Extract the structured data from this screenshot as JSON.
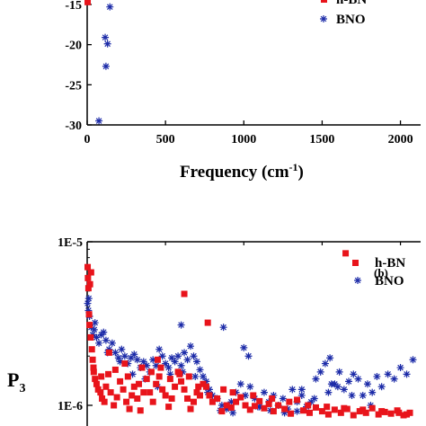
{
  "chart_data": [
    {
      "type": "scatter",
      "panel": "top",
      "xlabel": "Frequency (cm",
      "xlabel_sup": "-1",
      "xlabel_close": ")",
      "xlim": [
        0,
        2100
      ],
      "ylim": [
        -30,
        -13
      ],
      "xticks": [
        0,
        500,
        1000,
        1500,
        2000
      ],
      "xtick_labels": [
        "0",
        "500",
        "1000",
        "1500",
        "2000"
      ],
      "yticks": [
        -15,
        -20,
        -25,
        -30
      ],
      "ytick_labels": [
        "-15",
        "-20",
        "-25",
        "-30"
      ],
      "legend_position": "top-right",
      "series": [
        {
          "name": "h-BN",
          "marker": "square",
          "color": "#e8141b",
          "x": [
            3
          ],
          "y": [
            -14.7
          ]
        },
        {
          "name": "BNO",
          "marker": "asterisk",
          "color": "#1c2ba8",
          "x": [
            145,
            115,
            130,
            120,
            75
          ],
          "y": [
            -15.3,
            -19.1,
            -19.9,
            -22.7,
            -29.5
          ]
        }
      ]
    },
    {
      "type": "scatter",
      "panel": "bottom",
      "panel_label": "(b)",
      "ylabel": "P",
      "ylabel_sub": "3",
      "xlim": [
        0,
        2100
      ],
      "yscale": "log",
      "ylim": [
        8e-07,
        1e-05
      ],
      "yticks": [
        1e-05,
        1e-06
      ],
      "ytick_labels": [
        "1E-5",
        "1E-6"
      ],
      "legend_position": "top-right",
      "series": [
        {
          "name": "h-BN",
          "marker": "square",
          "color": "#e8141b",
          "x": [
            3,
            5,
            8,
            12,
            15,
            22,
            30,
            35,
            42,
            50,
            60,
            70,
            85,
            95,
            110,
            120,
            135,
            150,
            170,
            190,
            210,
            230,
            250,
            270,
            285,
            300,
            320,
            340,
            360,
            380,
            400,
            420,
            440,
            460,
            480,
            500,
            520,
            540,
            560,
            580,
            600,
            620,
            640,
            660,
            680,
            700,
            720,
            740,
            760,
            780,
            800,
            830,
            860,
            890,
            920,
            950,
            980,
            1010,
            1040,
            1070,
            1100,
            1130,
            1160,
            1190,
            1220,
            1260,
            1300,
            1340,
            1380,
            1420,
            1460,
            1500,
            1540,
            1580,
            1620,
            1660,
            1700,
            1740,
            1780,
            1820,
            1860,
            1900,
            1940,
            1980,
            2020,
            2060,
            620,
            770,
            1650,
            25,
            18,
            40,
            90,
            180,
            260,
            330,
            410,
            470,
            530,
            590,
            650,
            710,
            870,
            930,
            1060,
            1180,
            1290,
            1410,
            1530,
            1640,
            1760,
            1880,
            1990,
            2040,
            140,
            240,
            350,
            450
          ],
          "y": [
            7e-06,
            6e-06,
            5.2e-06,
            3.6e-06,
            3.1e-06,
            2.6e-06,
            2.2e-06,
            1.9e-06,
            1.6e-06,
            1.45e-06,
            1.35e-06,
            1.25e-06,
            1.2e-06,
            1.1e-06,
            1.05e-06,
            1.3e-06,
            1.55e-06,
            1.2e-06,
            1e-06,
            1.12e-06,
            1.4e-06,
            1.25e-06,
            1.05e-06,
            9.5e-07,
            1.15e-06,
            1.3e-06,
            1.1e-06,
            9.3e-07,
            1.2e-06,
            1.45e-06,
            1.2e-06,
            1.05e-06,
            1.35e-06,
            1.5e-06,
            1.25e-06,
            1.15e-06,
            9.8e-07,
            1.1e-06,
            1.3e-06,
            1.6e-06,
            1.4e-06,
            1.25e-06,
            1.1e-06,
            9.5e-07,
            1.05e-06,
            1.2e-06,
            1.15e-06,
            1.35e-06,
            1.3e-06,
            1.15e-06,
            1.05e-06,
            1.1e-06,
            9.2e-07,
            1e-06,
            9.7e-07,
            1.05e-06,
            1.12e-06,
            1e-06,
            9.4e-07,
            9.9e-07,
            1.06e-06,
            9.6e-07,
            1.02e-06,
            9.2e-07,
            1e-06,
            9.5e-07,
            8.9e-07,
            1.08e-06,
            9.3e-07,
            9e-07,
            9.7e-07,
            9.2e-07,
            8.8e-07,
            9.4e-07,
            9e-07,
            9.5e-07,
            8.7e-07,
            9.2e-07,
            9e-07,
            9.6e-07,
            8.8e-07,
            9.1e-07,
            8.9e-07,
            9.3e-07,
            8.7e-07,
            9e-07,
            4.8e-06,
            3.2e-06,
            8.5e-06,
            6.5e-06,
            5.5e-06,
            1.7e-06,
            1.5e-06,
            1.65e-06,
            1.5e-06,
            1.35e-06,
            1.6e-06,
            1.7e-06,
            1.45e-06,
            1.55e-06,
            1.5e-06,
            1.3e-06,
            1.25e-06,
            1.2e-06,
            1.15e-06,
            1.1e-06,
            1.05e-06,
            1e-06,
            9.8e-07,
            9.6e-07,
            9.4e-07,
            9.2e-07,
            9e-07,
            8.8e-07,
            2.1e-06,
            1.8e-06,
            1.7e-06,
            1.9e-06
          ]
        },
        {
          "name": "BNO",
          "marker": "asterisk",
          "color": "#1c2ba8",
          "x": [
            3,
            8,
            15,
            25,
            35,
            45,
            60,
            75,
            90,
            105,
            120,
            140,
            160,
            180,
            200,
            220,
            240,
            260,
            280,
            300,
            320,
            340,
            360,
            380,
            400,
            420,
            440,
            460,
            480,
            500,
            520,
            540,
            560,
            580,
            600,
            620,
            640,
            660,
            680,
            700,
            720,
            740,
            760,
            780,
            800,
            830,
            860,
            890,
            920,
            950,
            980,
            1010,
            1040,
            1070,
            1100,
            1130,
            1160,
            1190,
            1220,
            1250,
            1280,
            1310,
            1340,
            1370,
            1400,
            1430,
            1460,
            1490,
            1520,
            1550,
            1580,
            1610,
            1640,
            1670,
            1700,
            1730,
            1760,
            1790,
            1820,
            1850,
            1880,
            1920,
            1960,
            2000,
            2040,
            2080,
            600,
            1000,
            870,
            1030,
            1370,
            1540,
            1600,
            10,
            50,
            130,
            210,
            290,
            370,
            450,
            530,
            610,
            690,
            770,
            850,
            930,
            1090,
            1170,
            1260,
            1340,
            1450,
            1560,
            1690,
            1810
          ],
          "y": [
            4.2e-06,
            3.8e-06,
            3.5e-06,
            3e-06,
            2.7e-06,
            2.9e-06,
            2.6e-06,
            2.4e-06,
            2.7e-06,
            2.8e-06,
            2.5e-06,
            2.2e-06,
            2.4e-06,
            2.1e-06,
            1.95e-06,
            2.2e-06,
            2e-06,
            1.8e-06,
            1.95e-06,
            2.05e-06,
            1.9e-06,
            1.7e-06,
            1.85e-06,
            1.75e-06,
            1.6e-06,
            1.9e-06,
            1.75e-06,
            2.2e-06,
            2e-06,
            1.8e-06,
            1.7e-06,
            1.95e-06,
            1.85e-06,
            2e-06,
            1.75e-06,
            2.1e-06,
            1.9e-06,
            2.3e-06,
            2e-06,
            1.85e-06,
            1.65e-06,
            1.5e-06,
            1.4e-06,
            1.25e-06,
            1.15e-06,
            1.1e-06,
            1e-06,
            9.5e-07,
            1.05e-06,
            1.2e-06,
            1.35e-06,
            1.15e-06,
            1.3e-06,
            1.1e-06,
            9.8e-07,
            1.2e-06,
            1.05e-06,
            1.15e-06,
            1e-06,
            1.1e-06,
            9.5e-07,
            1.25e-06,
            1.05e-06,
            1.15e-06,
            9.8e-07,
            1.05e-06,
            1.45e-06,
            1.6e-06,
            1.8e-06,
            1.95e-06,
            1.35e-06,
            1.6e-06,
            1.25e-06,
            1.4e-06,
            1.55e-06,
            1.45e-06,
            1.15e-06,
            1.35e-06,
            1.2e-06,
            1.5e-06,
            1.3e-06,
            1.55e-06,
            1.45e-06,
            1.7e-06,
            1.55e-06,
            1.9e-06,
            3.1e-06,
            2.25e-06,
            3e-06,
            2e-06,
            1.25e-06,
            1.2e-06,
            1.3e-06,
            4.5e-06,
            3.2e-06,
            2.1e-06,
            1.85e-06,
            1.55e-06,
            1.45e-06,
            1.3e-06,
            1.55e-06,
            1.6e-06,
            1.5e-06,
            1.2e-06,
            9.3e-07,
            9e-07,
            9.8e-07,
            9.3e-07,
            9e-07,
            9.2e-07,
            1.1e-06,
            1.35e-06,
            1.15e-06,
            1e-06
          ]
        }
      ]
    }
  ]
}
